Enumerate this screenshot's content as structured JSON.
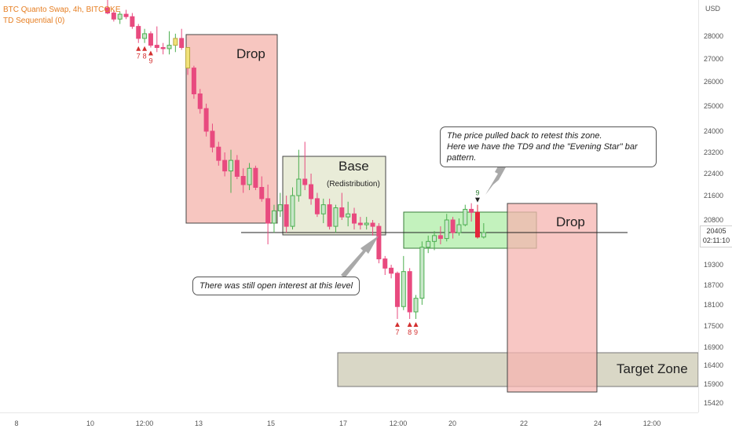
{
  "header": {
    "symbol_line": "BTC Quanto Swap, 4h, BITCOKE",
    "indicator_line": "TD Sequential (0)"
  },
  "colors": {
    "up_candle": "#c8e6c9",
    "up_border": "#4caf50",
    "down_candle": "#e84a7f",
    "highlight_candle": "#f1e27a",
    "red_signal_candle": "#e3263a",
    "drop_zone": "#f7c6c0",
    "base_zone": "#e9ecd8",
    "retest_zone": "#b9f0b2",
    "target_zone": "#d9d7c6",
    "td_label": "#d32f2f"
  },
  "chart_data": {
    "type": "candlestick",
    "title": "BTC Quanto Swap, 4h, BITCOKE",
    "price_unit": "USD",
    "y_ticks": [
      "28000",
      "27000",
      "26000",
      "25000",
      "24000",
      "23200",
      "22400",
      "21600",
      "20800",
      "19300",
      "18700",
      "18100",
      "17500",
      "16900",
      "16400",
      "15900",
      "15420"
    ],
    "x_ticks": [
      "8",
      "10",
      "12:00",
      "13",
      "15",
      "17",
      "12:00",
      "20",
      "22",
      "24",
      "12:00"
    ],
    "last_price": "20405",
    "countdown": "02:11:10",
    "horizontal_level": 20700,
    "candles": [
      {
        "o": 29200,
        "h": 29600,
        "l": 28900,
        "c": 28950
      },
      {
        "o": 28950,
        "h": 29100,
        "l": 28600,
        "c": 28700
      },
      {
        "o": 28700,
        "h": 29000,
        "l": 28500,
        "c": 28900
      },
      {
        "o": 28900,
        "h": 29100,
        "l": 28700,
        "c": 28800
      },
      {
        "o": 28800,
        "h": 28950,
        "l": 28300,
        "c": 28400
      },
      {
        "o": 28400,
        "h": 28500,
        "l": 27700,
        "c": 27900
      },
      {
        "o": 27900,
        "h": 28300,
        "l": 27700,
        "c": 28100
      },
      {
        "o": 28100,
        "h": 28200,
        "l": 27500,
        "c": 27600
      },
      {
        "o": 27600,
        "h": 28400,
        "l": 27300,
        "c": 27500
      },
      {
        "o": 27500,
        "h": 27700,
        "l": 27200,
        "c": 27450
      },
      {
        "o": 27450,
        "h": 28200,
        "l": 27200,
        "c": 27600
      },
      {
        "o": 27600,
        "h": 28100,
        "l": 27300,
        "c": 27900,
        "highlight": true
      },
      {
        "o": 27900,
        "h": 28300,
        "l": 27400,
        "c": 27500
      },
      {
        "o": 27500,
        "h": 27500,
        "l": 26300,
        "c": 26600,
        "highlight": true
      },
      {
        "o": 26600,
        "h": 26700,
        "l": 25300,
        "c": 25500
      },
      {
        "o": 25500,
        "h": 25700,
        "l": 24700,
        "c": 24900
      },
      {
        "o": 24900,
        "h": 25100,
        "l": 23800,
        "c": 24000
      },
      {
        "o": 24000,
        "h": 24300,
        "l": 23200,
        "c": 23400
      },
      {
        "o": 23400,
        "h": 23600,
        "l": 22700,
        "c": 22900
      },
      {
        "o": 22900,
        "h": 23200,
        "l": 22300,
        "c": 22500
      },
      {
        "o": 22500,
        "h": 23300,
        "l": 21700,
        "c": 22900
      },
      {
        "o": 22900,
        "h": 23100,
        "l": 22200,
        "c": 22300
      },
      {
        "o": 22300,
        "h": 22600,
        "l": 21700,
        "c": 22000
      },
      {
        "o": 22000,
        "h": 22800,
        "l": 21800,
        "c": 22600
      },
      {
        "o": 22600,
        "h": 22700,
        "l": 21800,
        "c": 21900
      },
      {
        "o": 21900,
        "h": 22300,
        "l": 21400,
        "c": 21500
      },
      {
        "o": 21500,
        "h": 22000,
        "l": 20000,
        "c": 20700
      },
      {
        "o": 20700,
        "h": 21300,
        "l": 20400,
        "c": 21100
      },
      {
        "o": 21100,
        "h": 21700,
        "l": 20900,
        "c": 21300
      },
      {
        "o": 21300,
        "h": 21600,
        "l": 20400,
        "c": 20600
      },
      {
        "o": 20600,
        "h": 21900,
        "l": 20500,
        "c": 21600
      },
      {
        "o": 21600,
        "h": 23300,
        "l": 21400,
        "c": 22200
      },
      {
        "o": 22200,
        "h": 23600,
        "l": 21800,
        "c": 22000
      },
      {
        "o": 22000,
        "h": 22400,
        "l": 21300,
        "c": 21500
      },
      {
        "o": 21500,
        "h": 21700,
        "l": 20900,
        "c": 21000
      },
      {
        "o": 21000,
        "h": 21500,
        "l": 20700,
        "c": 21300
      },
      {
        "o": 21300,
        "h": 21500,
        "l": 20500,
        "c": 20600
      },
      {
        "o": 20600,
        "h": 21300,
        "l": 20400,
        "c": 21200
      },
      {
        "o": 21200,
        "h": 21700,
        "l": 20800,
        "c": 20900
      },
      {
        "o": 20900,
        "h": 21400,
        "l": 20600,
        "c": 21000
      },
      {
        "o": 21000,
        "h": 21200,
        "l": 20500,
        "c": 20700
      },
      {
        "o": 20700,
        "h": 20900,
        "l": 20500,
        "c": 20650
      },
      {
        "o": 20650,
        "h": 20900,
        "l": 20500,
        "c": 20700
      },
      {
        "o": 20700,
        "h": 20800,
        "l": 20300,
        "c": 20600
      },
      {
        "o": 20600,
        "h": 20700,
        "l": 19350,
        "c": 19500
      },
      {
        "o": 19500,
        "h": 19600,
        "l": 19000,
        "c": 19200
      },
      {
        "o": 19200,
        "h": 19300,
        "l": 18900,
        "c": 19050
      },
      {
        "o": 19050,
        "h": 19100,
        "l": 17700,
        "c": 18050
      },
      {
        "o": 18050,
        "h": 19600,
        "l": 17950,
        "c": 19100
      },
      {
        "o": 19100,
        "h": 19200,
        "l": 17700,
        "c": 17900
      },
      {
        "o": 17900,
        "h": 18400,
        "l": 17700,
        "c": 18300
      },
      {
        "o": 18300,
        "h": 20100,
        "l": 18100,
        "c": 19900
      },
      {
        "o": 19900,
        "h": 20300,
        "l": 19700,
        "c": 20100
      },
      {
        "o": 20100,
        "h": 20450,
        "l": 19800,
        "c": 20300
      },
      {
        "o": 20300,
        "h": 20600,
        "l": 20000,
        "c": 20200
      },
      {
        "o": 20200,
        "h": 21000,
        "l": 20100,
        "c": 20800
      },
      {
        "o": 20800,
        "h": 20900,
        "l": 20200,
        "c": 20400
      },
      {
        "o": 20400,
        "h": 20850,
        "l": 20300,
        "c": 20650
      },
      {
        "o": 20650,
        "h": 21300,
        "l": 20600,
        "c": 21150
      },
      {
        "o": 21150,
        "h": 21350,
        "l": 20750,
        "c": 21050
      },
      {
        "o": 21050,
        "h": 21300,
        "l": 20200,
        "c": 20250,
        "signal": true
      },
      {
        "o": 20250,
        "h": 20700,
        "l": 20200,
        "c": 20405
      }
    ],
    "td_labels": [
      {
        "candle": 5,
        "label": "7",
        "pos": "below"
      },
      {
        "candle": 6,
        "label": "8",
        "pos": "below"
      },
      {
        "candle": 7,
        "label": "9",
        "pos": "below"
      },
      {
        "candle": 47,
        "label": "7",
        "pos": "below"
      },
      {
        "candle": 49,
        "label": "8",
        "pos": "below"
      },
      {
        "candle": 50,
        "label": "9",
        "pos": "below"
      },
      {
        "candle": 60,
        "label": "9",
        "pos": "above"
      }
    ]
  },
  "zones": {
    "drop_left": "Drop",
    "base": "Base",
    "base_sub": "(Redistribution)",
    "drop_right": "Drop",
    "target": "Target Zone"
  },
  "notes": {
    "retest_line1": "The price pulled back to retest this zone.",
    "retest_line2": "Here we have the TD9 and the \"Evening Star\" bar pattern.",
    "open_interest": "There was still open interest at this level"
  }
}
